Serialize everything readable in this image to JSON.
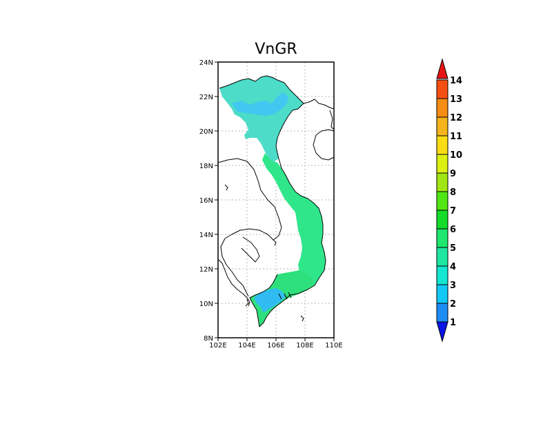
{
  "title": "VnGR",
  "axes": {
    "x_ticks": [
      "102E",
      "104E",
      "106E",
      "108E",
      "110E"
    ],
    "y_ticks": [
      "8N",
      "10N",
      "12N",
      "14N",
      "16N",
      "18N",
      "20N",
      "22N",
      "24N"
    ],
    "lon_range": [
      102,
      110
    ],
    "lat_range": [
      8,
      24
    ],
    "grid": true
  },
  "colorbar": {
    "levels": [
      "1",
      "2",
      "3",
      "4",
      "5",
      "6",
      "7",
      "8",
      "9",
      "10",
      "11",
      "12",
      "13",
      "14"
    ],
    "colors": [
      "#1560f0",
      "#1e8cf5",
      "#14c8f5",
      "#14e6d2",
      "#1ee6a0",
      "#1ee66e",
      "#14dc28",
      "#50e614",
      "#a0e614",
      "#dcf014",
      "#fadc14",
      "#f5b41e",
      "#f58c14",
      "#f55014",
      "#e61414"
    ],
    "low_arrow_color": "#0a14e6",
    "high_arrow_color": "#e61414",
    "extend": "both"
  },
  "map_fill": {
    "region": "Vietnam",
    "dominant_value_range": [
      3,
      6
    ],
    "north_color": "#4cdcc8",
    "north_blue_patch_color": "#41c8f0",
    "central_color": "#30e68a",
    "south_color": "#2ee07c",
    "mekong_color": "#30bcf2"
  }
}
